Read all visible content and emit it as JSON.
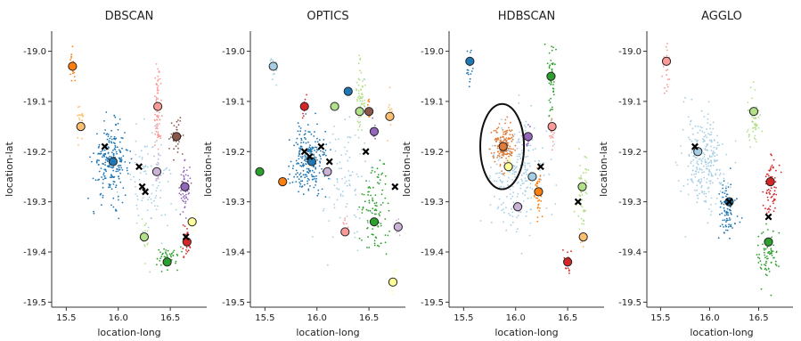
{
  "figure": {
    "background": "#ffffff"
  },
  "chart_data": [
    {
      "type": "scatter",
      "title": "DBSCAN",
      "xlabel": "location-long",
      "ylabel": "location-lat",
      "xlim": [
        15.36,
        16.85
      ],
      "ylim": [
        -19.51,
        -18.96
      ],
      "xticks": [
        15.5,
        16.0,
        16.5
      ],
      "xtick_labels": [
        "15.5",
        "16.0",
        "16.5"
      ],
      "yticks": [
        -19.0,
        -19.1,
        -19.2,
        -19.3,
        -19.4,
        -19.5
      ],
      "ytick_labels": [
        "-19.0",
        "-19.1",
        "-19.2",
        "-19.3",
        "-19.4",
        "-19.5"
      ],
      "grid": false,
      "clusters": [
        {
          "color": "#1f77b4",
          "center": [
            15.93,
            -19.22
          ],
          "spread": [
            0.14,
            0.06
          ],
          "count": 220
        },
        {
          "color": "#ff7f0e",
          "center": [
            15.56,
            -19.03
          ],
          "spread": [
            0.03,
            0.03
          ],
          "count": 25
        },
        {
          "color": "#fdbf6f",
          "center": [
            15.64,
            -19.15
          ],
          "spread": [
            0.03,
            0.03
          ],
          "count": 25
        },
        {
          "color": "#fb9a99",
          "center": [
            16.38,
            -19.11
          ],
          "spread": [
            0.03,
            0.07
          ],
          "count": 70
        },
        {
          "color": "#8c564b",
          "center": [
            16.56,
            -19.17
          ],
          "spread": [
            0.05,
            0.03
          ],
          "count": 40
        },
        {
          "color": "#9467bd",
          "center": [
            16.64,
            -19.27
          ],
          "spread": [
            0.04,
            0.04
          ],
          "count": 60
        },
        {
          "color": "#ffff99",
          "center": [
            16.71,
            -19.34
          ],
          "spread": [
            0.02,
            0.02
          ],
          "count": 10
        },
        {
          "color": "#d62728",
          "center": [
            16.66,
            -19.38
          ],
          "spread": [
            0.03,
            0.03
          ],
          "count": 30
        },
        {
          "color": "#2ca02c",
          "center": [
            16.47,
            -19.41
          ],
          "spread": [
            0.1,
            0.02
          ],
          "count": 50
        },
        {
          "color": "#b2df8a",
          "center": [
            16.25,
            -19.37
          ],
          "spread": [
            0.03,
            0.03
          ],
          "count": 20
        },
        {
          "color": "#cab2d6",
          "center": [
            16.37,
            -19.24
          ],
          "spread": [
            0.03,
            0.03
          ],
          "count": 20
        },
        {
          "color": "#a6cee3",
          "center": [
            16.3,
            -19.26
          ],
          "spread": [
            0.2,
            0.1
          ],
          "count": 90
        }
      ],
      "crosses": [
        [
          15.87,
          -19.19
        ],
        [
          16.2,
          -19.23
        ],
        [
          16.23,
          -19.27
        ],
        [
          16.26,
          -19.28
        ],
        [
          16.65,
          -19.37
        ]
      ],
      "ellipse": null
    },
    {
      "type": "scatter",
      "title": "OPTICS",
      "xlabel": "location-long",
      "ylabel": "location-lat",
      "xlim": [
        15.36,
        16.85
      ],
      "ylim": [
        -19.51,
        -18.96
      ],
      "xticks": [
        15.5,
        16.0,
        16.5
      ],
      "xtick_labels": [
        "15.5",
        "16.0",
        "16.5"
      ],
      "yticks": [
        -19.0,
        -19.1,
        -19.2,
        -19.3,
        -19.4,
        -19.5
      ],
      "ytick_labels": [
        "-19.0",
        "-19.1",
        "-19.2",
        "-19.3",
        "-19.4",
        "-19.5"
      ],
      "grid": false,
      "clusters": [
        {
          "color": "#1f77b4",
          "center": [
            15.93,
            -19.22
          ],
          "spread": [
            0.14,
            0.06
          ],
          "count": 220
        },
        {
          "color": "#a6cee3",
          "center": [
            15.58,
            -19.03
          ],
          "spread": [
            0.03,
            0.03
          ],
          "count": 20
        },
        {
          "color": "#d62728",
          "center": [
            15.88,
            -19.11
          ],
          "spread": [
            0.02,
            0.02
          ],
          "count": 10
        },
        {
          "color": "#b2df8a",
          "center": [
            16.42,
            -19.09
          ],
          "spread": [
            0.03,
            0.06
          ],
          "count": 60
        },
        {
          "color": "#ff7f0e",
          "center": [
            16.5,
            -19.12
          ],
          "spread": [
            0.02,
            0.02
          ],
          "count": 15
        },
        {
          "color": "#9467bd",
          "center": [
            16.55,
            -19.16
          ],
          "spread": [
            0.02,
            0.02
          ],
          "count": 15
        },
        {
          "color": "#fdbf6f",
          "center": [
            16.7,
            -19.13
          ],
          "spread": [
            0.02,
            0.03
          ],
          "count": 15
        },
        {
          "color": "#2ca02c",
          "center": [
            16.55,
            -19.32
          ],
          "spread": [
            0.12,
            0.08
          ],
          "count": 100
        },
        {
          "color": "#fb9a99",
          "center": [
            16.27,
            -19.35
          ],
          "spread": [
            0.02,
            0.02
          ],
          "count": 10
        },
        {
          "color": "#cab2d6",
          "center": [
            16.78,
            -19.35
          ],
          "spread": [
            0.02,
            0.02
          ],
          "count": 10
        },
        {
          "color": "#ffff99",
          "center": [
            16.73,
            -19.46
          ],
          "spread": [
            0.02,
            0.02
          ],
          "count": 10
        },
        {
          "color": "#a6cee3",
          "center": [
            16.3,
            -19.25
          ],
          "spread": [
            0.2,
            0.1
          ],
          "count": 90
        }
      ],
      "crosses": [
        [
          15.88,
          -19.2
        ],
        [
          15.93,
          -19.21
        ],
        [
          16.04,
          -19.19
        ],
        [
          16.12,
          -19.22
        ],
        [
          16.47,
          -19.2
        ],
        [
          16.75,
          -19.27
        ]
      ],
      "ellipse": null
    },
    {
      "type": "scatter",
      "title": "HDBSCAN",
      "xlabel": "location-long",
      "ylabel": "location-lat",
      "xlim": [
        15.36,
        16.85
      ],
      "ylim": [
        -19.51,
        -18.96
      ],
      "xticks": [
        15.5,
        16.0,
        16.5
      ],
      "xtick_labels": [
        "15.5",
        "16.0",
        "16.5"
      ],
      "yticks": [
        -19.0,
        -19.1,
        -19.2,
        -19.3,
        -19.4,
        -19.5
      ],
      "ytick_labels": [
        "-19.0",
        "-19.1",
        "-19.2",
        "-19.3",
        "-19.4",
        "-19.5"
      ],
      "grid": false,
      "clusters": [
        {
          "color": "#a6cee3",
          "center": [
            16.0,
            -19.25
          ],
          "spread": [
            0.22,
            0.09
          ],
          "count": 230
        },
        {
          "color": "#e07b39",
          "center": [
            15.88,
            -19.19
          ],
          "spread": [
            0.09,
            0.04
          ],
          "count": 170
        },
        {
          "color": "#1f77b4",
          "center": [
            15.56,
            -19.03
          ],
          "spread": [
            0.03,
            0.03
          ],
          "count": 20
        },
        {
          "color": "#2ca02c",
          "center": [
            16.34,
            -19.05
          ],
          "spread": [
            0.03,
            0.06
          ],
          "count": 50
        },
        {
          "color": "#fb9a99",
          "center": [
            16.35,
            -19.16
          ],
          "spread": [
            0.02,
            0.03
          ],
          "count": 20
        },
        {
          "color": "#9467bd",
          "center": [
            16.12,
            -19.17
          ],
          "spread": [
            0.02,
            0.02
          ],
          "count": 15
        },
        {
          "color": "#ff7f0e",
          "center": [
            16.22,
            -19.28
          ],
          "spread": [
            0.03,
            0.04
          ],
          "count": 45
        },
        {
          "color": "#b2df8a",
          "center": [
            16.64,
            -19.27
          ],
          "spread": [
            0.05,
            0.06
          ],
          "count": 50
        },
        {
          "color": "#fdbf6f",
          "center": [
            16.65,
            -19.37
          ],
          "spread": [
            0.02,
            0.02
          ],
          "count": 10
        },
        {
          "color": "#d62728",
          "center": [
            16.5,
            -19.42
          ],
          "spread": [
            0.03,
            0.02
          ],
          "count": 20
        },
        {
          "color": "#ffff99",
          "center": [
            15.93,
            -19.23
          ],
          "spread": [
            0.02,
            0.02
          ],
          "count": 8
        },
        {
          "color": "#cab2d6",
          "center": [
            16.02,
            -19.31
          ],
          "spread": [
            0.02,
            0.02
          ],
          "count": 8
        }
      ],
      "crosses": [
        [
          16.24,
          -19.23
        ],
        [
          16.6,
          -19.3
        ]
      ],
      "ellipse": {
        "center": [
          15.87,
          -19.19
        ],
        "radius": [
          0.21,
          0.085
        ]
      }
    },
    {
      "type": "scatter",
      "title": "AGGLO",
      "xlabel": "location-long",
      "ylabel": "location-lat",
      "xlim": [
        15.36,
        16.85
      ],
      "ylim": [
        -19.51,
        -18.96
      ],
      "xticks": [
        15.5,
        16.0,
        16.5
      ],
      "xtick_labels": [
        "15.5",
        "16.0",
        "16.5"
      ],
      "yticks": [
        -19.0,
        -19.1,
        -19.2,
        -19.3,
        -19.4,
        -19.5
      ],
      "ytick_labels": [
        "-19.0",
        "-19.1",
        "-19.2",
        "-19.3",
        "-19.4",
        "-19.5"
      ],
      "grid": false,
      "clusters": [
        {
          "color": "#a6cee3",
          "center": [
            15.95,
            -19.22
          ],
          "spread": [
            0.18,
            0.08
          ],
          "count": 260
        },
        {
          "color": "#fb9a99",
          "center": [
            15.56,
            -19.03
          ],
          "spread": [
            0.03,
            0.04
          ],
          "count": 25
        },
        {
          "color": "#b2df8a",
          "center": [
            16.45,
            -19.14
          ],
          "spread": [
            0.06,
            0.05
          ],
          "count": 50
        },
        {
          "color": "#1f77b4",
          "center": [
            16.18,
            -19.32
          ],
          "spread": [
            0.07,
            0.05
          ],
          "count": 80
        },
        {
          "color": "#d62728",
          "center": [
            16.62,
            -19.27
          ],
          "spread": [
            0.06,
            0.05
          ],
          "count": 70
        },
        {
          "color": "#2ca02c",
          "center": [
            16.6,
            -19.41
          ],
          "spread": [
            0.1,
            0.04
          ],
          "count": 70
        }
      ],
      "crosses": [
        [
          15.85,
          -19.19
        ],
        [
          16.2,
          -19.3
        ],
        [
          16.6,
          -19.33
        ]
      ],
      "ellipse": null
    }
  ],
  "centroids": [
    [
      {
        "x": 15.56,
        "y": -19.03,
        "color": "#ff7f0e"
      },
      {
        "x": 15.64,
        "y": -19.15,
        "color": "#fdbf6f"
      },
      {
        "x": 15.95,
        "y": -19.22,
        "color": "#1f77b4"
      },
      {
        "x": 16.38,
        "y": -19.11,
        "color": "#fb9a99"
      },
      {
        "x": 16.56,
        "y": -19.17,
        "color": "#8c564b"
      },
      {
        "x": 16.37,
        "y": -19.24,
        "color": "#cab2d6"
      },
      {
        "x": 16.64,
        "y": -19.27,
        "color": "#9467bd"
      },
      {
        "x": 16.71,
        "y": -19.34,
        "color": "#ffff99"
      },
      {
        "x": 16.66,
        "y": -19.38,
        "color": "#d62728"
      },
      {
        "x": 16.25,
        "y": -19.37,
        "color": "#b2df8a"
      },
      {
        "x": 16.47,
        "y": -19.42,
        "color": "#2ca02c"
      }
    ],
    [
      {
        "x": 15.58,
        "y": -19.03,
        "color": "#a6cee3"
      },
      {
        "x": 15.88,
        "y": -19.11,
        "color": "#d62728"
      },
      {
        "x": 16.17,
        "y": -19.11,
        "color": "#b2df8a"
      },
      {
        "x": 16.3,
        "y": -19.08,
        "color": "#1f77b4"
      },
      {
        "x": 16.41,
        "y": -19.12,
        "color": "#b2df8a"
      },
      {
        "x": 16.5,
        "y": -19.12,
        "color": "#8c564b"
      },
      {
        "x": 16.7,
        "y": -19.13,
        "color": "#fdbf6f"
      },
      {
        "x": 16.55,
        "y": -19.16,
        "color": "#9467bd"
      },
      {
        "x": 15.45,
        "y": -19.24,
        "color": "#2ca02c"
      },
      {
        "x": 15.67,
        "y": -19.26,
        "color": "#ff7f0e"
      },
      {
        "x": 15.95,
        "y": -19.22,
        "color": "#1f77b4"
      },
      {
        "x": 16.1,
        "y": -19.24,
        "color": "#cab2d6"
      },
      {
        "x": 16.55,
        "y": -19.34,
        "color": "#2ca02c"
      },
      {
        "x": 16.27,
        "y": -19.36,
        "color": "#fb9a99"
      },
      {
        "x": 16.78,
        "y": -19.35,
        "color": "#cab2d6"
      },
      {
        "x": 16.73,
        "y": -19.46,
        "color": "#ffff99"
      }
    ],
    [
      {
        "x": 15.56,
        "y": -19.02,
        "color": "#1f77b4"
      },
      {
        "x": 16.34,
        "y": -19.05,
        "color": "#2ca02c"
      },
      {
        "x": 16.35,
        "y": -19.15,
        "color": "#fb9a99"
      },
      {
        "x": 15.88,
        "y": -19.19,
        "color": "#e07b39"
      },
      {
        "x": 16.12,
        "y": -19.17,
        "color": "#9467bd"
      },
      {
        "x": 15.93,
        "y": -19.23,
        "color": "#ffff99"
      },
      {
        "x": 16.16,
        "y": -19.25,
        "color": "#a6cee3"
      },
      {
        "x": 16.22,
        "y": -19.28,
        "color": "#ff7f0e"
      },
      {
        "x": 16.64,
        "y": -19.27,
        "color": "#b2df8a"
      },
      {
        "x": 16.02,
        "y": -19.31,
        "color": "#cab2d6"
      },
      {
        "x": 16.65,
        "y": -19.37,
        "color": "#fdbf6f"
      },
      {
        "x": 16.5,
        "y": -19.42,
        "color": "#d62728"
      }
    ],
    [
      {
        "x": 15.56,
        "y": -19.02,
        "color": "#fb9a99"
      },
      {
        "x": 16.45,
        "y": -19.12,
        "color": "#b2df8a"
      },
      {
        "x": 15.88,
        "y": -19.2,
        "color": "#a6cee3"
      },
      {
        "x": 16.62,
        "y": -19.26,
        "color": "#d62728"
      },
      {
        "x": 16.2,
        "y": -19.3,
        "color": "#1f77b4"
      },
      {
        "x": 16.6,
        "y": -19.38,
        "color": "#2ca02c"
      }
    ]
  ]
}
